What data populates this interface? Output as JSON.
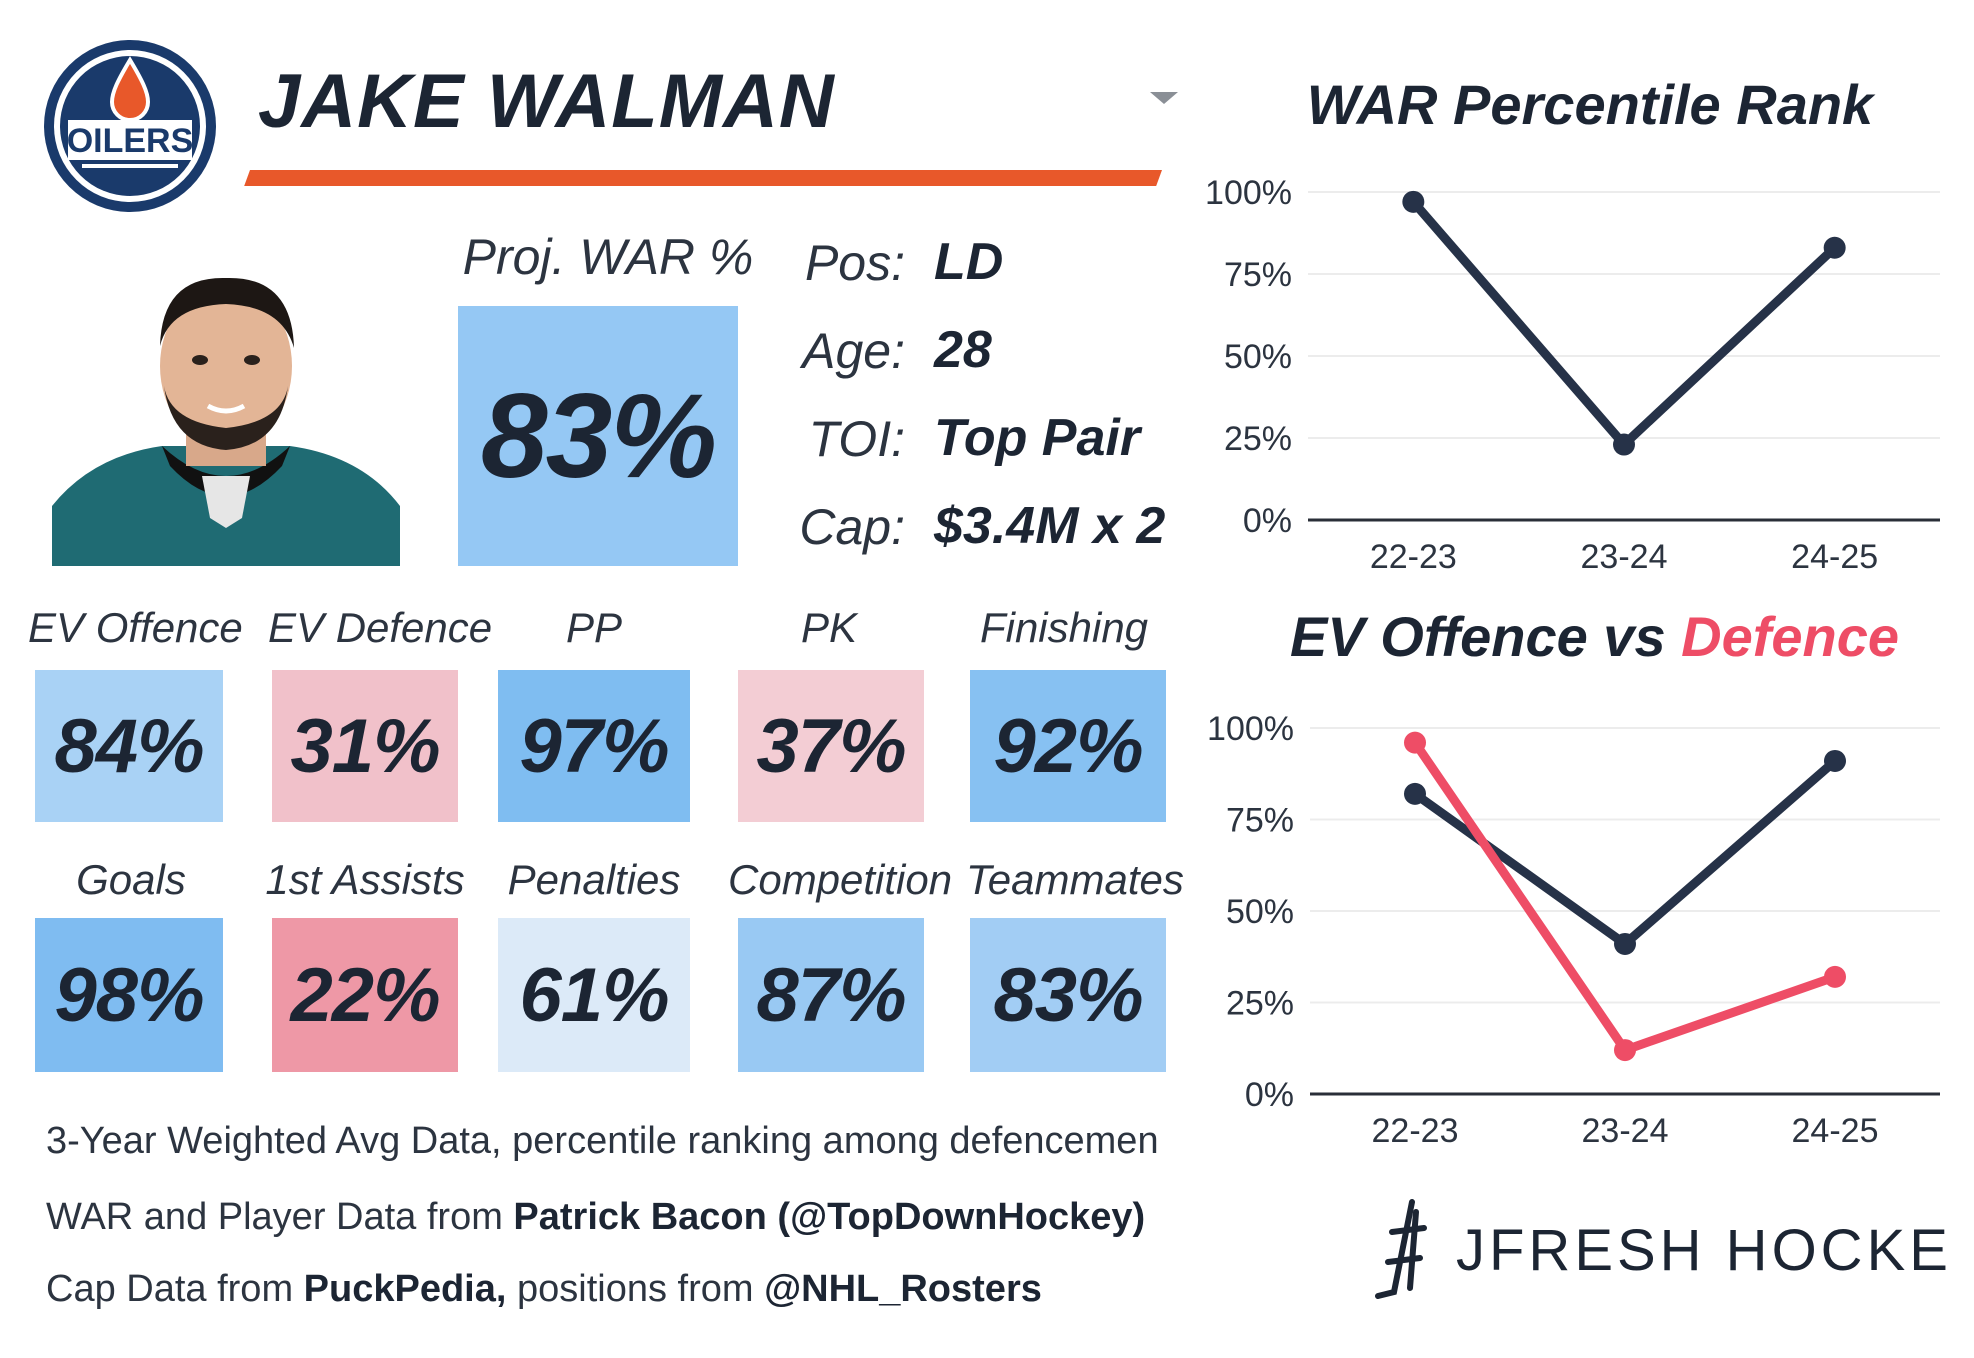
{
  "logo": {
    "team": "OILERS"
  },
  "player": {
    "name": "JAKE WALMAN"
  },
  "projected": {
    "label": "Proj. WAR %",
    "value": "83%"
  },
  "info": [
    {
      "label": "Pos:",
      "value": "LD"
    },
    {
      "label": "Age:",
      "value": "28"
    },
    {
      "label": "TOI:",
      "value": "Top Pair"
    },
    {
      "label": "Cap:",
      "value": "$3.4M x 2"
    }
  ],
  "tiles_row1": [
    {
      "label": "EV Offence",
      "value": "84%",
      "color": "#a9d2f5"
    },
    {
      "label": "EV Defence",
      "value": "31%",
      "color": "#f1c1ca"
    },
    {
      "label": "PP",
      "value": "97%",
      "color": "#7fbdf1"
    },
    {
      "label": "PK",
      "value": "37%",
      "color": "#f3cdd4"
    },
    {
      "label": "Finishing",
      "value": "92%",
      "color": "#87c1f2"
    }
  ],
  "tiles_row2": [
    {
      "label": "Goals",
      "value": "98%",
      "color": "#7fbcf1"
    },
    {
      "label": "1st Assists",
      "value": "22%",
      "color": "#ee98a6"
    },
    {
      "label": "Penalties",
      "value": "61%",
      "color": "#dceaf8"
    },
    {
      "label": "Competition",
      "value": "87%",
      "color": "#99c9f3"
    },
    {
      "label": "Teammates",
      "value": "83%",
      "color": "#a2cdf4"
    }
  ],
  "footnotes": [
    {
      "text": "3-Year Weighted Avg Data, percentile ranking among defencemen",
      "strong": "",
      "rest": "",
      "strong2": ""
    },
    {
      "text": "WAR and Player Data from ",
      "strong": "Patrick Bacon (@TopDownHockey)",
      "rest": "",
      "strong2": ""
    },
    {
      "text": "Cap Data from ",
      "strong": "PuckPedia,",
      "rest": " positions from ",
      "strong2": "@NHL_Rosters"
    }
  ],
  "brand": {
    "name": "JFRESH HOCKEY"
  },
  "colors": {
    "navy": "#263248",
    "red": "#ee4d66",
    "orange": "#e8582a"
  },
  "chart_data": [
    {
      "type": "line",
      "title": "WAR Percentile Rank",
      "categories": [
        "22-23",
        "23-24",
        "24-25"
      ],
      "series": [
        {
          "name": "WAR",
          "values": [
            97,
            23,
            83
          ],
          "color": "#263248"
        }
      ],
      "yticks": [
        "100%",
        "75%",
        "50%",
        "25%",
        "0%"
      ],
      "ylim": [
        0,
        100
      ]
    },
    {
      "type": "line",
      "title_part1": "EV Offence vs ",
      "title_part2": "Defence",
      "categories": [
        "22-23",
        "23-24",
        "24-25"
      ],
      "series": [
        {
          "name": "EV Offence",
          "values": [
            82,
            41,
            91
          ],
          "color": "#263248"
        },
        {
          "name": "EV Defence",
          "values": [
            96,
            12,
            32
          ],
          "color": "#ee4d66"
        }
      ],
      "yticks": [
        "100%",
        "75%",
        "50%",
        "25%",
        "0%"
      ],
      "ylim": [
        0,
        100
      ]
    }
  ]
}
